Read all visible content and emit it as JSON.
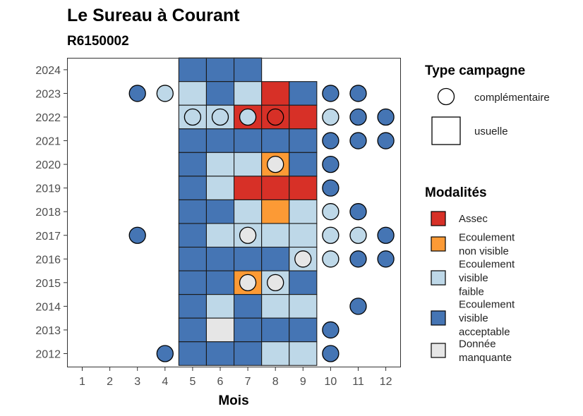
{
  "chart_data": {
    "type": "heatmap",
    "title": "Le Sureau à Courant",
    "subtitle": "R6150002",
    "xlabel": "Mois",
    "ylabel": "",
    "x_ticks": [
      "1",
      "2",
      "3",
      "4",
      "5",
      "6",
      "7",
      "8",
      "9",
      "10",
      "11",
      "12"
    ],
    "y_ticks": [
      "2012",
      "2013",
      "2014",
      "2015",
      "2016",
      "2017",
      "2018",
      "2019",
      "2020",
      "2021",
      "2022",
      "2023",
      "2024"
    ],
    "grid": false,
    "legend_position": "right",
    "legend_campagne": {
      "title": "Type campagne",
      "entries": [
        {
          "key": "complementaire",
          "label": "complémentaire"
        },
        {
          "key": "usuelle",
          "label": "usuelle"
        }
      ]
    },
    "legend_modalites": {
      "title": "Modalités",
      "entries": [
        {
          "key": "assec",
          "lines": [
            "Assec"
          ],
          "color": "#d73027"
        },
        {
          "key": "nonvisible",
          "lines": [
            "Ecoulement",
            "non visible"
          ],
          "color": "#fc9a35"
        },
        {
          "key": "faible",
          "lines": [
            "Ecoulement",
            "visible",
            "faible"
          ],
          "color": "#bed8e8"
        },
        {
          "key": "acceptable",
          "lines": [
            "Ecoulement",
            "visible",
            "acceptable"
          ],
          "color": "#4575b4"
        },
        {
          "key": "manquante",
          "lines": [
            "Donnée",
            "manquante"
          ],
          "color": "#e6e6e6"
        }
      ]
    },
    "usuelle": [
      {
        "year": "2024",
        "month": 5,
        "modalite": "acceptable"
      },
      {
        "year": "2024",
        "month": 6,
        "modalite": "acceptable"
      },
      {
        "year": "2024",
        "month": 7,
        "modalite": "acceptable"
      },
      {
        "year": "2023",
        "month": 5,
        "modalite": "faible"
      },
      {
        "year": "2023",
        "month": 6,
        "modalite": "acceptable"
      },
      {
        "year": "2023",
        "month": 7,
        "modalite": "faible"
      },
      {
        "year": "2023",
        "month": 8,
        "modalite": "assec"
      },
      {
        "year": "2023",
        "month": 9,
        "modalite": "acceptable"
      },
      {
        "year": "2022",
        "month": 5,
        "modalite": "faible"
      },
      {
        "year": "2022",
        "month": 6,
        "modalite": "faible"
      },
      {
        "year": "2022",
        "month": 7,
        "modalite": "assec"
      },
      {
        "year": "2022",
        "month": 8,
        "modalite": "assec"
      },
      {
        "year": "2022",
        "month": 9,
        "modalite": "assec"
      },
      {
        "year": "2021",
        "month": 5,
        "modalite": "acceptable"
      },
      {
        "year": "2021",
        "month": 6,
        "modalite": "acceptable"
      },
      {
        "year": "2021",
        "month": 7,
        "modalite": "acceptable"
      },
      {
        "year": "2021",
        "month": 8,
        "modalite": "acceptable"
      },
      {
        "year": "2021",
        "month": 9,
        "modalite": "acceptable"
      },
      {
        "year": "2020",
        "month": 5,
        "modalite": "acceptable"
      },
      {
        "year": "2020",
        "month": 6,
        "modalite": "faible"
      },
      {
        "year": "2020",
        "month": 7,
        "modalite": "faible"
      },
      {
        "year": "2020",
        "month": 8,
        "modalite": "nonvisible"
      },
      {
        "year": "2020",
        "month": 9,
        "modalite": "acceptable"
      },
      {
        "year": "2019",
        "month": 5,
        "modalite": "acceptable"
      },
      {
        "year": "2019",
        "month": 6,
        "modalite": "faible"
      },
      {
        "year": "2019",
        "month": 7,
        "modalite": "assec"
      },
      {
        "year": "2019",
        "month": 8,
        "modalite": "assec"
      },
      {
        "year": "2019",
        "month": 9,
        "modalite": "assec"
      },
      {
        "year": "2018",
        "month": 5,
        "modalite": "acceptable"
      },
      {
        "year": "2018",
        "month": 6,
        "modalite": "acceptable"
      },
      {
        "year": "2018",
        "month": 7,
        "modalite": "faible"
      },
      {
        "year": "2018",
        "month": 8,
        "modalite": "nonvisible"
      },
      {
        "year": "2018",
        "month": 9,
        "modalite": "faible"
      },
      {
        "year": "2017",
        "month": 5,
        "modalite": "acceptable"
      },
      {
        "year": "2017",
        "month": 6,
        "modalite": "faible"
      },
      {
        "year": "2017",
        "month": 7,
        "modalite": "faible"
      },
      {
        "year": "2017",
        "month": 8,
        "modalite": "faible"
      },
      {
        "year": "2017",
        "month": 9,
        "modalite": "faible"
      },
      {
        "year": "2016",
        "month": 5,
        "modalite": "acceptable"
      },
      {
        "year": "2016",
        "month": 6,
        "modalite": "acceptable"
      },
      {
        "year": "2016",
        "month": 7,
        "modalite": "acceptable"
      },
      {
        "year": "2016",
        "month": 8,
        "modalite": "acceptable"
      },
      {
        "year": "2016",
        "month": 9,
        "modalite": "faible"
      },
      {
        "year": "2015",
        "month": 5,
        "modalite": "acceptable"
      },
      {
        "year": "2015",
        "month": 6,
        "modalite": "acceptable"
      },
      {
        "year": "2015",
        "month": 7,
        "modalite": "nonvisible"
      },
      {
        "year": "2015",
        "month": 8,
        "modalite": "faible"
      },
      {
        "year": "2015",
        "month": 9,
        "modalite": "acceptable"
      },
      {
        "year": "2014",
        "month": 5,
        "modalite": "acceptable"
      },
      {
        "year": "2014",
        "month": 6,
        "modalite": "faible"
      },
      {
        "year": "2014",
        "month": 7,
        "modalite": "acceptable"
      },
      {
        "year": "2014",
        "month": 8,
        "modalite": "faible"
      },
      {
        "year": "2014",
        "month": 9,
        "modalite": "faible"
      },
      {
        "year": "2013",
        "month": 5,
        "modalite": "acceptable"
      },
      {
        "year": "2013",
        "month": 6,
        "modalite": "manquante"
      },
      {
        "year": "2013",
        "month": 7,
        "modalite": "acceptable"
      },
      {
        "year": "2013",
        "month": 8,
        "modalite": "acceptable"
      },
      {
        "year": "2013",
        "month": 9,
        "modalite": "acceptable"
      },
      {
        "year": "2012",
        "month": 5,
        "modalite": "acceptable"
      },
      {
        "year": "2012",
        "month": 6,
        "modalite": "acceptable"
      },
      {
        "year": "2012",
        "month": 7,
        "modalite": "acceptable"
      },
      {
        "year": "2012",
        "month": 8,
        "modalite": "faible"
      },
      {
        "year": "2012",
        "month": 9,
        "modalite": "faible"
      }
    ],
    "complementaire": [
      {
        "year": "2023",
        "month": 3,
        "modalite": "acceptable"
      },
      {
        "year": "2023",
        "month": 4,
        "modalite": "faible"
      },
      {
        "year": "2023",
        "month": 10,
        "modalite": "acceptable"
      },
      {
        "year": "2023",
        "month": 11,
        "modalite": "acceptable"
      },
      {
        "year": "2022",
        "month": 5,
        "modalite": "faible"
      },
      {
        "year": "2022",
        "month": 6,
        "modalite": "faible"
      },
      {
        "year": "2022",
        "month": 7,
        "modalite": "faible"
      },
      {
        "year": "2022",
        "month": 8,
        "modalite": "assec"
      },
      {
        "year": "2022",
        "month": 10,
        "modalite": "faible"
      },
      {
        "year": "2022",
        "month": 11,
        "modalite": "acceptable"
      },
      {
        "year": "2022",
        "month": 12,
        "modalite": "acceptable"
      },
      {
        "year": "2021",
        "month": 10,
        "modalite": "acceptable"
      },
      {
        "year": "2021",
        "month": 11,
        "modalite": "acceptable"
      },
      {
        "year": "2021",
        "month": 12,
        "modalite": "acceptable"
      },
      {
        "year": "2020",
        "month": 8,
        "modalite": "manquante"
      },
      {
        "year": "2020",
        "month": 10,
        "modalite": "acceptable"
      },
      {
        "year": "2019",
        "month": 10,
        "modalite": "acceptable"
      },
      {
        "year": "2018",
        "month": 10,
        "modalite": "faible"
      },
      {
        "year": "2018",
        "month": 11,
        "modalite": "acceptable"
      },
      {
        "year": "2017",
        "month": 3,
        "modalite": "acceptable"
      },
      {
        "year": "2017",
        "month": 7,
        "modalite": "manquante"
      },
      {
        "year": "2017",
        "month": 10,
        "modalite": "faible"
      },
      {
        "year": "2017",
        "month": 11,
        "modalite": "faible"
      },
      {
        "year": "2017",
        "month": 12,
        "modalite": "acceptable"
      },
      {
        "year": "2016",
        "month": 9,
        "modalite": "manquante"
      },
      {
        "year": "2016",
        "month": 10,
        "modalite": "faible"
      },
      {
        "year": "2016",
        "month": 11,
        "modalite": "acceptable"
      },
      {
        "year": "2016",
        "month": 12,
        "modalite": "acceptable"
      },
      {
        "year": "2015",
        "month": 7,
        "modalite": "manquante"
      },
      {
        "year": "2015",
        "month": 8,
        "modalite": "manquante"
      },
      {
        "year": "2014",
        "month": 11,
        "modalite": "acceptable"
      },
      {
        "year": "2013",
        "month": 10,
        "modalite": "acceptable"
      },
      {
        "year": "2012",
        "month": 4,
        "modalite": "acceptable"
      },
      {
        "year": "2012",
        "month": 10,
        "modalite": "acceptable"
      }
    ]
  }
}
